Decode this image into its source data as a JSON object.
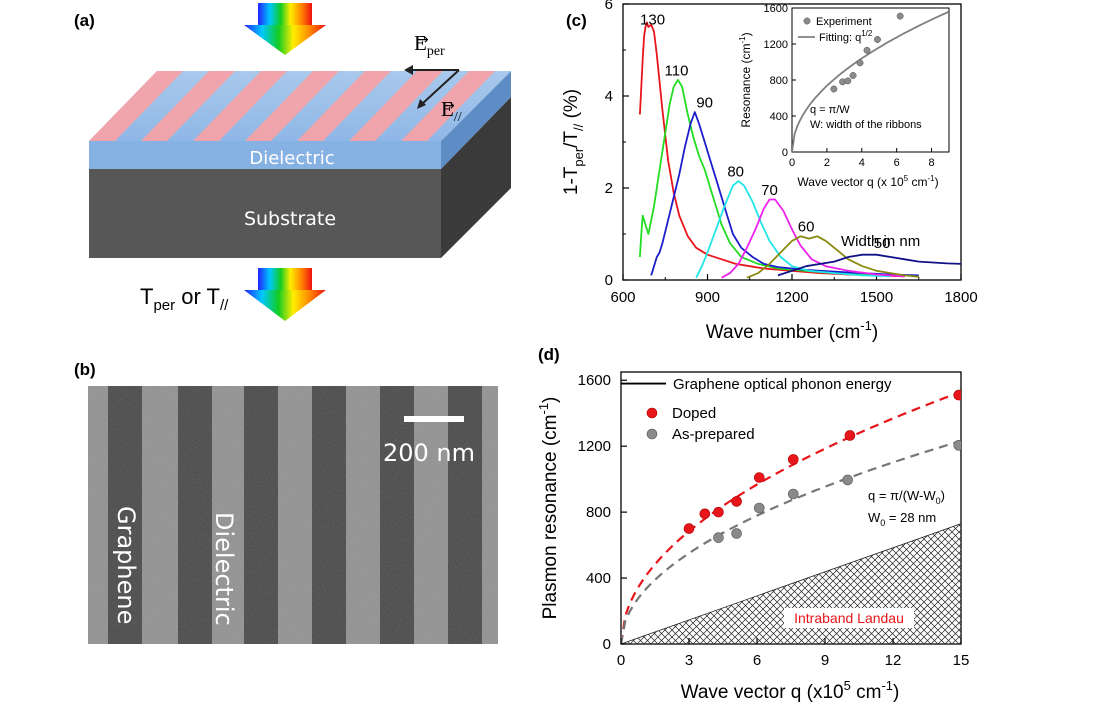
{
  "panels": {
    "a": {
      "label": "(a)",
      "layer_top": "Dielectric",
      "layer_bottom": "Substrate",
      "e_per_base": "E",
      "e_per_sub": "per",
      "e_par_base": "E",
      "e_par_sub": "//",
      "output_t": "T",
      "output_per": "per",
      "output_or": " or T",
      "output_par": "//"
    },
    "b": {
      "label": "(b)",
      "scale_bar": "200 nm",
      "graphene_label": "Graphene",
      "dielectric_label": "Dielectric"
    },
    "c": {
      "label": "(c)",
      "legend_title": "Width in nm",
      "ylabel": {
        "base": "1-T",
        "sub1": "per",
        "mid": "/T",
        "sub2": "//",
        "tail": " (%)"
      },
      "xlabel": {
        "base": "Wave number (cm",
        "sup": "-1",
        "tail": ")"
      },
      "inset": {
        "legend_experiment": "Experiment",
        "legend_fit": {
          "base": "Fitting: q",
          "sup": "1/2"
        },
        "note1": "q = π/W",
        "note2": "W: width of the ribbons",
        "ylabel": {
          "base": "Resonance (cm",
          "sup": "-1",
          "tail": ")"
        },
        "xlabel": {
          "base": "Wave vector q (x 10",
          "sup": "5",
          "mid": " cm",
          "sup2": "-1",
          "tail": ")"
        }
      }
    },
    "d": {
      "label": "(d)",
      "phonon_label": "Graphene optical phonon energy",
      "legend_doped": "Doped",
      "legend_asprep": "As-prepared",
      "formula": {
        "base": "q = π/(W-W",
        "sub": "0",
        "tail": ")"
      },
      "w0": {
        "base": "W",
        "sub": "0",
        "tail": " = 28 nm"
      },
      "landau_label": "Intraband Landau",
      "ylabel": {
        "base": "Plasmon resonance (cm",
        "sup": "-1",
        "tail": ")"
      },
      "xlabel": {
        "base": "Wave vector q (x10",
        "sup": "5",
        "mid": " cm",
        "sup2": "-1",
        "tail": ")"
      }
    }
  },
  "colors": {
    "red": "#e8151b",
    "green": "#22dd22",
    "blue": "#1d1dcc",
    "cyan": "#22e6e6",
    "magenta": "#ee22ee",
    "olive": "#8a8a10",
    "navy": "#111188",
    "gray": "#8a8a8a",
    "landau_text": "#e8151b"
  },
  "chart_data": [
    {
      "id": "c-main",
      "type": "line",
      "xlabel": "Wave number (cm-1)",
      "ylabel": "1-Tper/T// (%)",
      "xlim": [
        600,
        1800
      ],
      "ylim": [
        0,
        6
      ],
      "xticks": [
        600,
        900,
        1200,
        1500,
        1800
      ],
      "yticks": [
        0,
        2,
        4,
        6
      ],
      "legend_title": "Width in nm",
      "series": [
        {
          "name": "130",
          "color": "red",
          "label_at": [
            705,
            5.55
          ],
          "points": [
            [
              660,
              3.6
            ],
            [
              665,
              4.2
            ],
            [
              670,
              4.8
            ],
            [
              675,
              5.3
            ],
            [
              680,
              5.5
            ],
            [
              685,
              5.6
            ],
            [
              690,
              5.5
            ],
            [
              700,
              5.55
            ],
            [
              710,
              5.4
            ],
            [
              720,
              4.9
            ],
            [
              740,
              3.7
            ],
            [
              760,
              2.6
            ],
            [
              780,
              1.9
            ],
            [
              800,
              1.4
            ],
            [
              830,
              0.95
            ],
            [
              860,
              0.7
            ],
            [
              900,
              0.55
            ],
            [
              950,
              0.45
            ],
            [
              1000,
              0.35
            ],
            [
              1050,
              0.3
            ],
            [
              1100,
              0.25
            ],
            [
              1200,
              0.2
            ],
            [
              1300,
              0.15
            ],
            [
              1400,
              0.12
            ],
            [
              1500,
              0.1
            ],
            [
              1600,
              0.08
            ]
          ]
        },
        {
          "name": "110",
          "color": "green",
          "label_at": [
            790,
            4.45
          ],
          "points": [
            [
              660,
              0.5
            ],
            [
              665,
              1.0
            ],
            [
              670,
              1.4
            ],
            [
              680,
              1.2
            ],
            [
              690,
              1.0
            ],
            [
              700,
              1.3
            ],
            [
              710,
              1.6
            ],
            [
              720,
              2.0
            ],
            [
              735,
              2.6
            ],
            [
              750,
              3.2
            ],
            [
              765,
              3.8
            ],
            [
              780,
              4.2
            ],
            [
              795,
              4.35
            ],
            [
              810,
              4.2
            ],
            [
              830,
              3.6
            ],
            [
              850,
              3.1
            ],
            [
              870,
              2.7
            ],
            [
              890,
              2.4
            ],
            [
              910,
              2.0
            ],
            [
              930,
              1.6
            ],
            [
              950,
              1.2
            ],
            [
              980,
              0.8
            ],
            [
              1020,
              0.5
            ],
            [
              1080,
              0.35
            ],
            [
              1150,
              0.25
            ],
            [
              1250,
              0.2
            ],
            [
              1350,
              0.15
            ],
            [
              1450,
              0.12
            ],
            [
              1550,
              0.1
            ]
          ]
        },
        {
          "name": "90",
          "color": "blue",
          "label_at": [
            890,
            3.75
          ],
          "points": [
            [
              700,
              0.1
            ],
            [
              710,
              0.3
            ],
            [
              720,
              0.5
            ],
            [
              730,
              0.6
            ],
            [
              740,
              0.8
            ],
            [
              760,
              1.3
            ],
            [
              780,
              1.8
            ],
            [
              800,
              2.3
            ],
            [
              820,
              2.9
            ],
            [
              840,
              3.4
            ],
            [
              855,
              3.65
            ],
            [
              870,
              3.4
            ],
            [
              890,
              3.0
            ],
            [
              910,
              2.6
            ],
            [
              930,
              2.2
            ],
            [
              950,
              1.8
            ],
            [
              970,
              1.4
            ],
            [
              990,
              1.0
            ],
            [
              1020,
              0.7
            ],
            [
              1060,
              0.5
            ],
            [
              1100,
              0.35
            ],
            [
              1150,
              0.28
            ],
            [
              1250,
              0.22
            ],
            [
              1350,
              0.18
            ],
            [
              1450,
              0.15
            ],
            [
              1550,
              0.12
            ],
            [
              1650,
              0.1
            ]
          ]
        },
        {
          "name": "80",
          "color": "cyan",
          "label_at": [
            1000,
            2.25
          ],
          "points": [
            [
              860,
              0.05
            ],
            [
              880,
              0.3
            ],
            [
              900,
              0.6
            ],
            [
              930,
              1.1
            ],
            [
              960,
              1.6
            ],
            [
              990,
              2.05
            ],
            [
              1010,
              2.15
            ],
            [
              1030,
              2.05
            ],
            [
              1060,
              1.7
            ],
            [
              1090,
              1.25
            ],
            [
              1120,
              0.85
            ],
            [
              1160,
              0.5
            ],
            [
              1200,
              0.3
            ],
            [
              1260,
              0.2
            ],
            [
              1350,
              0.15
            ],
            [
              1450,
              0.1
            ],
            [
              1550,
              0.08
            ]
          ]
        },
        {
          "name": "70",
          "color": "magenta",
          "label_at": [
            1120,
            1.85
          ],
          "points": [
            [
              950,
              0.05
            ],
            [
              980,
              0.15
            ],
            [
              1010,
              0.35
            ],
            [
              1040,
              0.7
            ],
            [
              1070,
              1.1
            ],
            [
              1100,
              1.55
            ],
            [
              1120,
              1.75
            ],
            [
              1140,
              1.75
            ],
            [
              1170,
              1.5
            ],
            [
              1200,
              1.1
            ],
            [
              1230,
              0.75
            ],
            [
              1270,
              0.45
            ],
            [
              1320,
              0.3
            ],
            [
              1400,
              0.2
            ],
            [
              1500,
              0.12
            ],
            [
              1600,
              0.08
            ]
          ]
        },
        {
          "name": "60",
          "color": "olive",
          "label_at": [
            1250,
            1.05
          ],
          "points": [
            [
              1040,
              0.05
            ],
            [
              1080,
              0.15
            ],
            [
              1120,
              0.35
            ],
            [
              1160,
              0.6
            ],
            [
              1200,
              0.85
            ],
            [
              1230,
              0.95
            ],
            [
              1260,
              0.9
            ],
            [
              1290,
              0.95
            ],
            [
              1320,
              0.85
            ],
            [
              1360,
              0.65
            ],
            [
              1400,
              0.45
            ],
            [
              1450,
              0.3
            ],
            [
              1500,
              0.2
            ],
            [
              1550,
              0.15
            ],
            [
              1600,
              0.1
            ],
            [
              1650,
              0.07
            ]
          ]
        },
        {
          "name": "50",
          "color": "navy",
          "label_at": [
            1520,
            0.7
          ],
          "points": [
            [
              1150,
              0.1
            ],
            [
              1200,
              0.2
            ],
            [
              1250,
              0.3
            ],
            [
              1300,
              0.35
            ],
            [
              1350,
              0.4
            ],
            [
              1400,
              0.5
            ],
            [
              1450,
              0.55
            ],
            [
              1500,
              0.55
            ],
            [
              1550,
              0.5
            ],
            [
              1600,
              0.45
            ],
            [
              1650,
              0.4
            ],
            [
              1700,
              0.38
            ],
            [
              1750,
              0.36
            ],
            [
              1800,
              0.35
            ]
          ]
        }
      ]
    },
    {
      "id": "c-inset",
      "type": "scatter",
      "xlabel": "Wave vector q (x 10^5 cm-1)",
      "ylabel": "Resonance (cm-1)",
      "xlim": [
        0,
        9
      ],
      "ylim": [
        0,
        1600
      ],
      "xticks": [
        0,
        2,
        4,
        6,
        8
      ],
      "yticks": [
        0,
        400,
        800,
        1200,
        1600
      ],
      "series": [
        {
          "name": "Experiment",
          "points": [
            [
              2.4,
              700
            ],
            [
              2.9,
              780
            ],
            [
              3.2,
              790
            ],
            [
              3.5,
              850
            ],
            [
              3.9,
              990
            ],
            [
              4.3,
              1130
            ],
            [
              4.9,
              1250
            ],
            [
              6.2,
              1510
            ]
          ]
        },
        {
          "name": "Fitting: q1/2",
          "fit": "sqrt",
          "coef": 520
        }
      ]
    },
    {
      "id": "d",
      "type": "scatter",
      "xlabel": "Wave vector q (x10^5 cm-1)",
      "ylabel": "Plasmon resonance (cm-1)",
      "xlim": [
        0,
        15
      ],
      "ylim": [
        0,
        1650
      ],
      "xticks": [
        0,
        3,
        6,
        9,
        12,
        15
      ],
      "yticks": [
        0,
        400,
        800,
        1200,
        1600
      ],
      "phonon_energy": 1580,
      "series": [
        {
          "name": "Doped",
          "color": "red",
          "fit_coef": 395,
          "points": [
            [
              3.0,
              700
            ],
            [
              3.7,
              790
            ],
            [
              4.3,
              800
            ],
            [
              5.1,
              865
            ],
            [
              6.1,
              1010
            ],
            [
              7.6,
              1120
            ],
            [
              10.1,
              1265
            ],
            [
              14.9,
              1510
            ]
          ]
        },
        {
          "name": "As-prepared",
          "color": "gray",
          "fit_coef": 318,
          "points": [
            [
              4.3,
              645
            ],
            [
              5.1,
              670
            ],
            [
              6.1,
              825
            ],
            [
              7.6,
              910
            ],
            [
              10.0,
              995
            ],
            [
              14.9,
              1205
            ]
          ]
        }
      ],
      "landau": {
        "label": "Intraband Landau",
        "top_at_xmax": 730
      }
    }
  ]
}
